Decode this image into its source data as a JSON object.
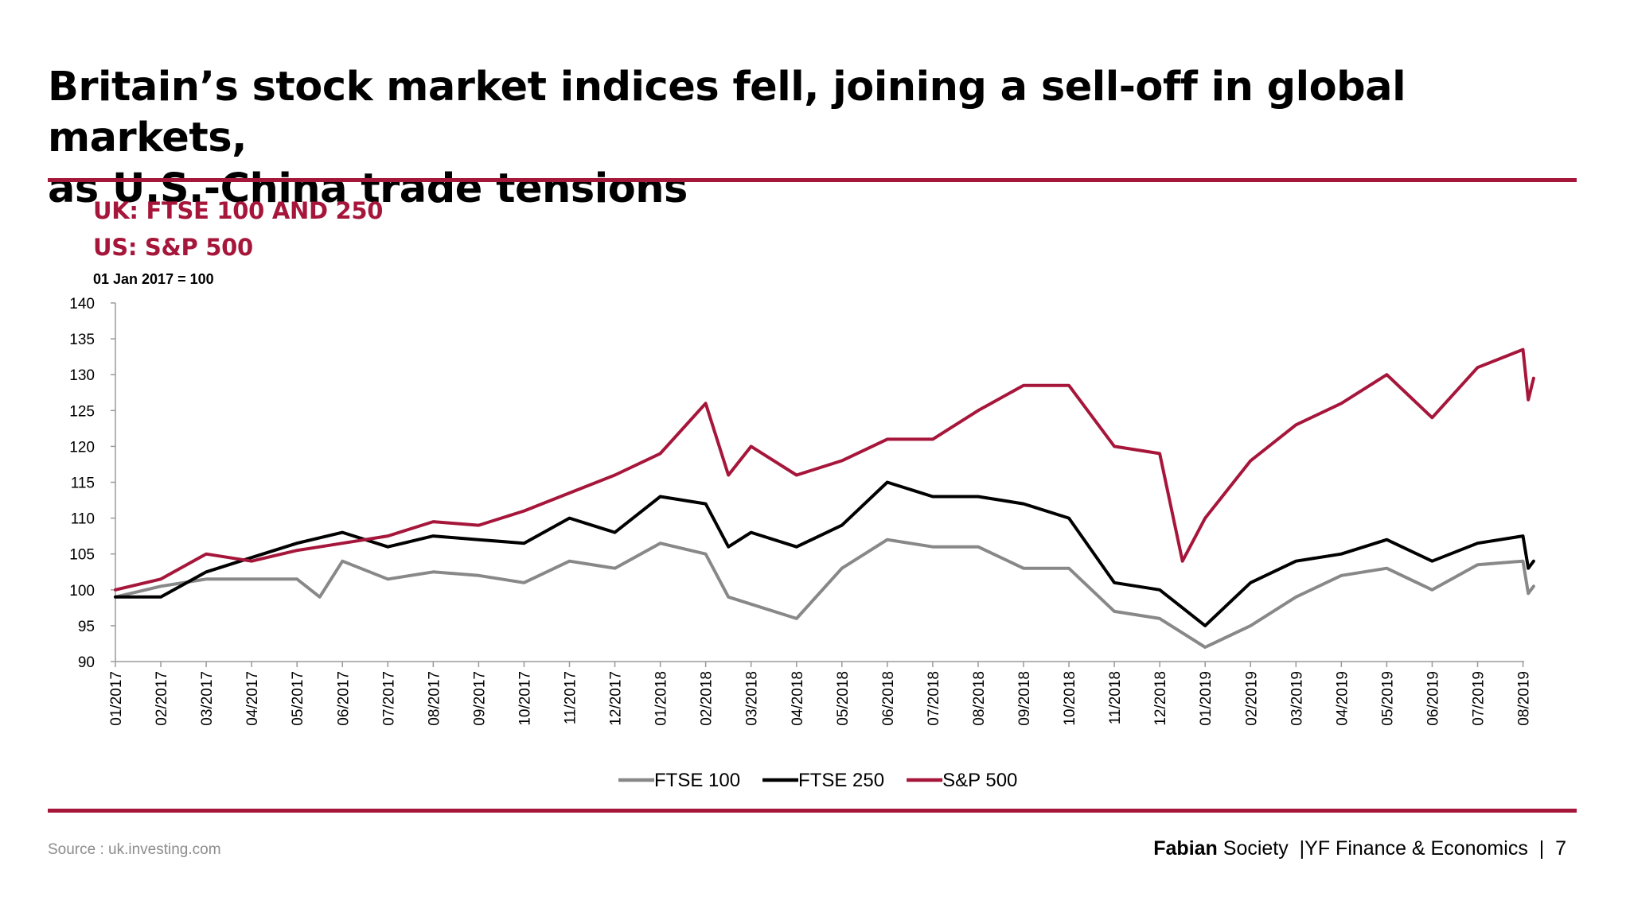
{
  "slide": {
    "title_line1": "Britain’s stock market indices fell, joining a sell-off in global markets,",
    "title_line2": "as U.S.-China trade tensions",
    "subtitle1": "UK: FTSE 100 AND 250",
    "subtitle2": "US: S&P 500",
    "basis": "01 Jan 2017 = 100",
    "source": "Source : uk.investing.com",
    "footer_org_bold": "Fabian",
    "footer_org_rest": " Society",
    "footer_dept": "  |YF Finance & Economics  |  ",
    "footer_page": "7"
  },
  "colors": {
    "accent": "#a6163a",
    "ftse100": "#888888",
    "ftse250": "#000000",
    "sp500": "#a6163a"
  },
  "chart_data": {
    "type": "line",
    "ylim": [
      90,
      140
    ],
    "yticks": [
      90,
      95,
      100,
      105,
      110,
      115,
      120,
      125,
      130,
      135,
      140
    ],
    "x_ticks": [
      "01/2017",
      "02/2017",
      "03/2017",
      "04/2017",
      "05/2017",
      "06/2017",
      "07/2017",
      "08/2017",
      "09/2017",
      "10/2017",
      "11/2017",
      "12/2017",
      "01/2018",
      "02/2018",
      "03/2018",
      "04/2018",
      "05/2018",
      "06/2018",
      "07/2018",
      "08/2018",
      "09/2018",
      "10/2018",
      "11/2018",
      "12/2018",
      "01/2019",
      "02/2019",
      "03/2019",
      "04/2019",
      "05/2019",
      "06/2019",
      "07/2019",
      "08/2019"
    ],
    "legend_position": "bottom",
    "series": [
      {
        "name": "FTSE 100",
        "color_key": "ftse100",
        "points": [
          [
            "01/2017",
            99
          ],
          [
            "02/2017",
            100.5
          ],
          [
            "03/2017",
            101.5
          ],
          [
            "04/2017",
            101.5
          ],
          [
            "05/2017",
            101.5
          ],
          [
            "05/2017",
            99
          ],
          [
            "06/2017",
            104
          ],
          [
            "07/2017",
            101.5
          ],
          [
            "08/2017",
            102.5
          ],
          [
            "09/2017",
            102
          ],
          [
            "10/2017",
            101
          ],
          [
            "11/2017",
            104
          ],
          [
            "12/2017",
            103
          ],
          [
            "01/2018",
            106.5
          ],
          [
            "02/2018",
            105
          ],
          [
            "02/2018",
            99
          ],
          [
            "03/2018",
            98
          ],
          [
            "04/2018",
            96
          ],
          [
            "05/2018",
            103
          ],
          [
            "06/2018",
            107
          ],
          [
            "07/2018",
            106
          ],
          [
            "08/2018",
            106
          ],
          [
            "09/2018",
            103
          ],
          [
            "10/2018",
            103
          ],
          [
            "11/2018",
            97
          ],
          [
            "12/2018",
            96
          ],
          [
            "01/2019",
            92
          ],
          [
            "02/2019",
            95
          ],
          [
            "03/2019",
            99
          ],
          [
            "04/2019",
            102
          ],
          [
            "05/2019",
            103
          ],
          [
            "06/2019",
            100
          ],
          [
            "07/2019",
            103.5
          ],
          [
            "08/2019",
            104
          ],
          [
            "08/2019",
            99.5
          ],
          [
            "08/2019",
            100.5
          ]
        ]
      },
      {
        "name": "FTSE 250",
        "color_key": "ftse250",
        "points": [
          [
            "01/2017",
            99
          ],
          [
            "02/2017",
            99
          ],
          [
            "03/2017",
            102.5
          ],
          [
            "04/2017",
            104.5
          ],
          [
            "05/2017",
            106.5
          ],
          [
            "06/2017",
            108
          ],
          [
            "07/2017",
            106
          ],
          [
            "08/2017",
            107.5
          ],
          [
            "09/2017",
            107
          ],
          [
            "10/2017",
            106.5
          ],
          [
            "11/2017",
            110
          ],
          [
            "12/2017",
            108
          ],
          [
            "01/2018",
            113
          ],
          [
            "02/2018",
            112
          ],
          [
            "02/2018",
            106
          ],
          [
            "03/2018",
            108
          ],
          [
            "04/2018",
            106
          ],
          [
            "05/2018",
            109
          ],
          [
            "06/2018",
            115
          ],
          [
            "07/2018",
            113
          ],
          [
            "08/2018",
            113
          ],
          [
            "09/2018",
            112
          ],
          [
            "10/2018",
            110
          ],
          [
            "11/2018",
            101
          ],
          [
            "12/2018",
            100
          ],
          [
            "01/2019",
            95
          ],
          [
            "02/2019",
            101
          ],
          [
            "03/2019",
            104
          ],
          [
            "04/2019",
            105
          ],
          [
            "05/2019",
            107
          ],
          [
            "06/2019",
            104
          ],
          [
            "07/2019",
            106.5
          ],
          [
            "08/2019",
            107.5
          ],
          [
            "08/2019",
            103
          ],
          [
            "08/2019",
            104
          ]
        ]
      },
      {
        "name": "S&P 500",
        "color_key": "sp500",
        "points": [
          [
            "01/2017",
            100
          ],
          [
            "02/2017",
            101.5
          ],
          [
            "03/2017",
            105
          ],
          [
            "04/2017",
            104
          ],
          [
            "05/2017",
            105.5
          ],
          [
            "06/2017",
            106.5
          ],
          [
            "07/2017",
            107.5
          ],
          [
            "08/2017",
            109.5
          ],
          [
            "09/2017",
            109
          ],
          [
            "10/2017",
            111
          ],
          [
            "11/2017",
            113.5
          ],
          [
            "12/2017",
            116
          ],
          [
            "01/2018",
            119
          ],
          [
            "02/2018",
            126
          ],
          [
            "02/2018",
            116
          ],
          [
            "03/2018",
            120
          ],
          [
            "04/2018",
            116
          ],
          [
            "05/2018",
            118
          ],
          [
            "06/2018",
            121
          ],
          [
            "07/2018",
            121
          ],
          [
            "08/2018",
            125
          ],
          [
            "09/2018",
            128.5
          ],
          [
            "10/2018",
            128.5
          ],
          [
            "11/2018",
            120
          ],
          [
            "12/2018",
            119
          ],
          [
            "12/2018",
            104
          ],
          [
            "01/2019",
            110
          ],
          [
            "02/2019",
            118
          ],
          [
            "03/2019",
            123
          ],
          [
            "04/2019",
            126
          ],
          [
            "05/2019",
            130
          ],
          [
            "06/2019",
            124
          ],
          [
            "07/2019",
            131
          ],
          [
            "08/2019",
            133.5
          ],
          [
            "08/2019",
            126.5
          ],
          [
            "08/2019",
            129.5
          ]
        ]
      }
    ]
  }
}
